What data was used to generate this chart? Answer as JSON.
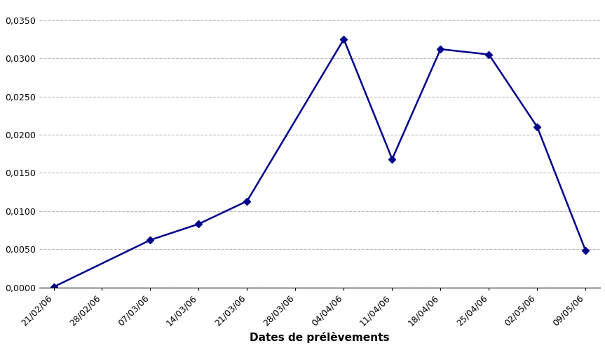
{
  "x_tick_labels": [
    "21/02/06",
    "28/02/06",
    "07/03/06",
    "14/03/06",
    "21/03/06",
    "28/03/06",
    "04/04/06",
    "11/04/06",
    "18/04/06",
    "25/04/06",
    "02/05/06",
    "09/05/06"
  ],
  "data_x_indices": [
    0,
    2,
    3,
    4,
    6,
    7,
    8,
    9,
    10,
    11
  ],
  "values": [
    5e-05,
    0.0062,
    0.0083,
    0.0113,
    0.0325,
    0.0168,
    0.0312,
    0.0305,
    0.021,
    0.0048
  ],
  "line_color": "#00008B",
  "marker": "D",
  "marker_size": 5,
  "xlabel": "Dates de prélèvements",
  "xlabel_fontsize": 11,
  "xlabel_fontweight": "bold",
  "ylim": [
    0,
    0.037
  ],
  "yticks": [
    0.0,
    0.005,
    0.01,
    0.015,
    0.02,
    0.025,
    0.03,
    0.035
  ],
  "ytick_labels": [
    "0,0000",
    "0,0050",
    "0,0100",
    "0,0150",
    "0,0200",
    "0,0250",
    "0,0300",
    "0,0350"
  ],
  "grid_color": "#bbbbbb",
  "grid_linestyle": "--",
  "background_color": "#ffffff",
  "tick_fontsize": 9
}
